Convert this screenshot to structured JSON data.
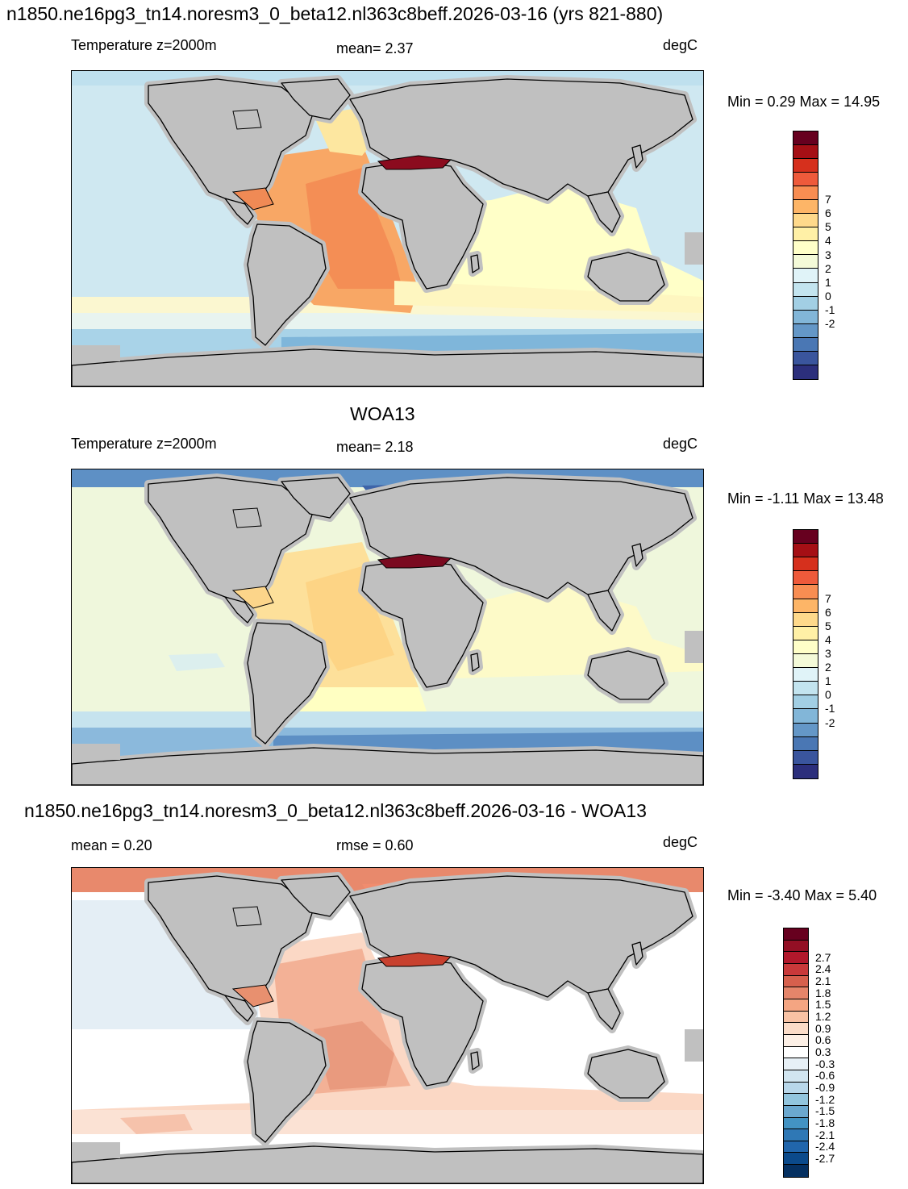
{
  "panels": [
    {
      "title": "n1850.ne16pg3_tn14.noresm3_0_beta12.nl363c8beff.2026-03-16 (yrs 821-880)",
      "left_label": "Temperature z=2000m",
      "center_label": "mean=   2.37",
      "units": "degC",
      "minmax": "Min =   0.29 Max =  14.95",
      "colorbar": {
        "labels": [
          "7",
          "6",
          "5",
          "4",
          "3",
          "2",
          "1",
          "0",
          "-1",
          "-2"
        ],
        "colors": [
          "#67001f",
          "#a50f15",
          "#d6301d",
          "#ee5a3b",
          "#f88d52",
          "#fdb567",
          "#fed98b",
          "#fff0a6",
          "#ffffc8",
          "#f4fad8",
          "#e0f3f8",
          "#c3e4ef",
          "#a2cfe4",
          "#82b6d8",
          "#6497c7",
          "#4a77b4",
          "#3a559d",
          "#2c2f7c"
        ]
      },
      "chart_data": {
        "type": "heatmap",
        "variable": "Temperature z=2000m",
        "units": "degC",
        "mean": 2.37,
        "min": 0.29,
        "max": 14.95,
        "colorbar_ticks": [
          7,
          6,
          5,
          4,
          3,
          2,
          1,
          0,
          -1,
          -2
        ],
        "regions": {
          "Atlantic": "orange (4-5 degC)",
          "Mediterranean": "dark red (>7 degC)",
          "Indian Ocean": "pale yellow (2-3 degC)",
          "Pacific": "light blue (1-2 degC)",
          "Southern Ocean": "blue (0-1 degC)",
          "Arctic": "light blue (1-2 degC)"
        }
      }
    },
    {
      "title": "WOA13",
      "left_label": "Temperature z=2000m",
      "center_label": "mean=   2.18",
      "units": "degC",
      "minmax": "Min =  -1.11 Max =  13.48",
      "colorbar": {
        "labels": [
          "7",
          "6",
          "5",
          "4",
          "3",
          "2",
          "1",
          "0",
          "-1",
          "-2"
        ],
        "colors": [
          "#67001f",
          "#a50f15",
          "#d6301d",
          "#ee5a3b",
          "#f88d52",
          "#fdb567",
          "#fed98b",
          "#fff0a6",
          "#ffffc8",
          "#f4fad8",
          "#e0f3f8",
          "#c3e4ef",
          "#a2cfe4",
          "#82b6d8",
          "#6497c7",
          "#4a77b4",
          "#3a559d",
          "#2c2f7c"
        ]
      },
      "chart_data": {
        "type": "heatmap",
        "variable": "Temperature z=2000m",
        "units": "degC",
        "mean": 2.18,
        "min": -1.11,
        "max": 13.48,
        "colorbar_ticks": [
          7,
          6,
          5,
          4,
          3,
          2,
          1,
          0,
          -1,
          -2
        ],
        "regions": {
          "Atlantic": "light orange (3-4 degC)",
          "Mediterranean": "dark red (>7 degC)",
          "Indian Ocean": "pale yellow (2-3 degC)",
          "Pacific": "pale green (2 degC)",
          "Southern Ocean": "blue (-1-0 degC)",
          "Arctic": "blue (-1-0 degC)"
        }
      }
    },
    {
      "title": "n1850.ne16pg3_tn14.noresm3_0_beta12.nl363c8beff.2026-03-16 - WOA13",
      "left_label": "mean =   0.20",
      "center_label": "rmse =   0.60",
      "units": "degC",
      "minmax": "Min =  -3.40 Max =   5.40",
      "colorbar": {
        "labels": [
          "2.7",
          "2.4",
          "2.1",
          "1.8",
          "1.5",
          "1.2",
          "0.9",
          "0.6",
          "0.3",
          "-0.3",
          "-0.6",
          "-0.9",
          "-1.2",
          "-1.5",
          "-1.8",
          "-2.1",
          "-2.4",
          "-2.7"
        ],
        "colors": [
          "#67001f",
          "#930f24",
          "#b2182b",
          "#c9393a",
          "#d6604d",
          "#e5856a",
          "#f4a582",
          "#f8c2a4",
          "#fbdcc8",
          "#fdf0e6",
          "#ffffff",
          "#e7f0f6",
          "#d1e5f0",
          "#b8d7ea",
          "#92c5de",
          "#6ba8cf",
          "#4393c3",
          "#2f78b5",
          "#2166ac",
          "#0b4a8b",
          "#053061"
        ]
      },
      "chart_data": {
        "type": "heatmap",
        "variable": "Temperature z=2000m difference",
        "units": "degC",
        "mean": 0.2,
        "rmse": 0.6,
        "min": -3.4,
        "max": 5.4,
        "colorbar_ticks": [
          2.7,
          2.4,
          2.1,
          1.8,
          1.5,
          1.2,
          0.9,
          0.6,
          0.3,
          -0.3,
          -0.6,
          -0.9,
          -1.2,
          -1.5,
          -1.8,
          -2.1,
          -2.4,
          -2.7
        ],
        "regions": {
          "Atlantic": "salmon (0.6-1.5 degC)",
          "Mediterranean": "red (>1.8 degC)",
          "Indian Ocean": "white (-0.3-0.3 degC)",
          "Pacific": "light blue / white (-0.6-0.3 degC)",
          "Southern Ocean": "pale salmon (0.3-0.9 degC)",
          "Arctic": "salmon (1.2-1.5 degC)"
        }
      }
    }
  ],
  "colors": {
    "land": "#c0c0c0",
    "coast": "#000000"
  }
}
